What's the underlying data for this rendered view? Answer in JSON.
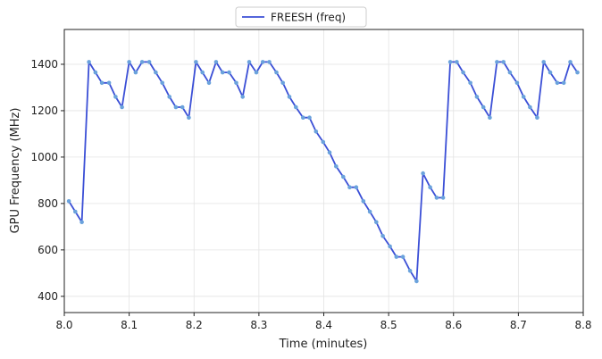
{
  "chart_data": {
    "type": "line",
    "xlabel": "Time (minutes)",
    "ylabel": "GPU Frequency (MHz)",
    "xlim": [
      8.0,
      8.8
    ],
    "ylim": [
      330,
      1550
    ],
    "x_ticks": [
      8.0,
      8.1,
      8.2,
      8.3,
      8.4,
      8.5,
      8.6,
      8.7,
      8.8
    ],
    "x_tick_labels": [
      "8.0",
      "8.1",
      "8.2",
      "8.3",
      "8.4",
      "8.5",
      "8.6",
      "8.7",
      "8.8"
    ],
    "y_ticks": [
      400,
      600,
      800,
      1000,
      1200,
      1400
    ],
    "y_tick_labels": [
      "400",
      "600",
      "800",
      "1000",
      "1200",
      "1400"
    ],
    "grid": true,
    "legend_position": "top-center",
    "line_color": "#3b4fd6",
    "marker_color": "#6aa2dc",
    "series": [
      {
        "name": "FREESH (freq)",
        "x": [
          8.007,
          8.017,
          8.027,
          8.038,
          8.048,
          8.058,
          8.069,
          8.079,
          8.089,
          8.1,
          8.11,
          8.12,
          8.131,
          8.141,
          8.151,
          8.162,
          8.172,
          8.182,
          8.192,
          8.203,
          8.213,
          8.223,
          8.234,
          8.244,
          8.254,
          8.265,
          8.275,
          8.285,
          8.296,
          8.306,
          8.316,
          8.327,
          8.337,
          8.347,
          8.357,
          8.368,
          8.378,
          8.388,
          8.399,
          8.409,
          8.419,
          8.43,
          8.44,
          8.45,
          8.461,
          8.471,
          8.481,
          8.491,
          8.502,
          8.512,
          8.522,
          8.533,
          8.543,
          8.553,
          8.564,
          8.574,
          8.584,
          8.595,
          8.605,
          8.615,
          8.626,
          8.636,
          8.646,
          8.656,
          8.667,
          8.677,
          8.687,
          8.698,
          8.708,
          8.718,
          8.729,
          8.739,
          8.749,
          8.76,
          8.77,
          8.78,
          8.791
        ],
        "values": [
          810,
          765,
          720,
          1410,
          1365,
          1320,
          1320,
          1260,
          1215,
          1410,
          1365,
          1410,
          1410,
          1365,
          1320,
          1260,
          1215,
          1215,
          1170,
          1410,
          1365,
          1320,
          1410,
          1365,
          1365,
          1320,
          1260,
          1410,
          1365,
          1410,
          1410,
          1365,
          1320,
          1260,
          1215,
          1170,
          1170,
          1110,
          1065,
          1020,
          960,
          915,
          870,
          870,
          810,
          765,
          720,
          660,
          615,
          570,
          570,
          510,
          465,
          930,
          870,
          825,
          825,
          1410,
          1410,
          1365,
          1320,
          1260,
          1215,
          1170,
          1410,
          1410,
          1365,
          1320,
          1260,
          1215,
          1170,
          1410,
          1365,
          1320,
          1320,
          1410,
          1365
        ]
      }
    ]
  }
}
